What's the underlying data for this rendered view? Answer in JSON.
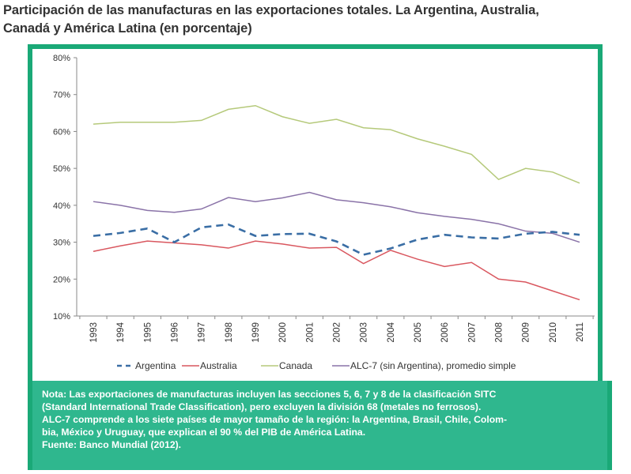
{
  "title_line1": "Participación de las manufacturas en las exportaciones totales. La Argentina, Australia,",
  "title_line2": "Canadá y América Latina (en porcentaje)",
  "chart_data": {
    "type": "line",
    "title": "Participación de las manufacturas en las exportaciones totales. La Argentina, Australia, Canadá y América Latina (en porcentaje)",
    "x": [
      "1993",
      "1994",
      "1995",
      "1996",
      "1997",
      "1998",
      "1999",
      "2000",
      "2001",
      "2002",
      "2003",
      "2004",
      "2005",
      "2006",
      "2007",
      "2008",
      "2009",
      "2010",
      "2011"
    ],
    "ylim": [
      10,
      80
    ],
    "yticks": [
      "10%",
      "20%",
      "30%",
      "40%",
      "50%",
      "60%",
      "70%",
      "80%"
    ],
    "legend_position": "bottom",
    "series": [
      {
        "name": "Argentina",
        "color": "#3a6ea5",
        "dash": true,
        "values": [
          31.7,
          32.5,
          33.7,
          30,
          34,
          34.8,
          31.7,
          32.2,
          32.3,
          30.2,
          26.6,
          28.3,
          30.7,
          32,
          31.3,
          31,
          32.3,
          32.8,
          32
        ]
      },
      {
        "name": "Australia",
        "color": "#d9575f",
        "dash": false,
        "values": [
          27.5,
          29,
          30.3,
          29.8,
          29.3,
          28.4,
          30.3,
          29.5,
          28.4,
          28.6,
          24.2,
          27.8,
          25.4,
          23.4,
          24.5,
          20,
          19.2,
          16.8,
          14.4
        ]
      },
      {
        "name": "Canada",
        "color": "#b5c97a",
        "dash": false,
        "values": [
          62,
          62.5,
          62.5,
          62.5,
          63,
          66,
          67,
          64,
          62.2,
          63.3,
          61,
          60.5,
          58,
          56,
          53.8,
          47,
          50,
          49,
          46
        ]
      },
      {
        "name": "ALC-7 (sin Argentina), promedio simple",
        "color": "#8a73a8",
        "dash": false,
        "values": [
          41,
          40,
          38.6,
          38.1,
          39,
          42.1,
          41,
          42,
          43.5,
          41.5,
          40.7,
          39.6,
          38,
          37,
          36.2,
          35,
          33,
          32.4,
          30
        ]
      }
    ]
  },
  "note": [
    "Nota: Las exportaciones de manufacturas incluyen las secciones 5, 6, 7 y 8 de la clasificación SITC",
    "(Standard International Trade Classification), pero excluyen la división 68 (metales no ferrosos).",
    "ALC-7 comprende a los siete países de mayor tamaño de la región: la Argentina, Brasil, Chile, Colom-",
    "bia, México y Uruguay, que explican el 90 % del PIB de América Latina.",
    "Fuente: Banco Mundial (2012)."
  ]
}
